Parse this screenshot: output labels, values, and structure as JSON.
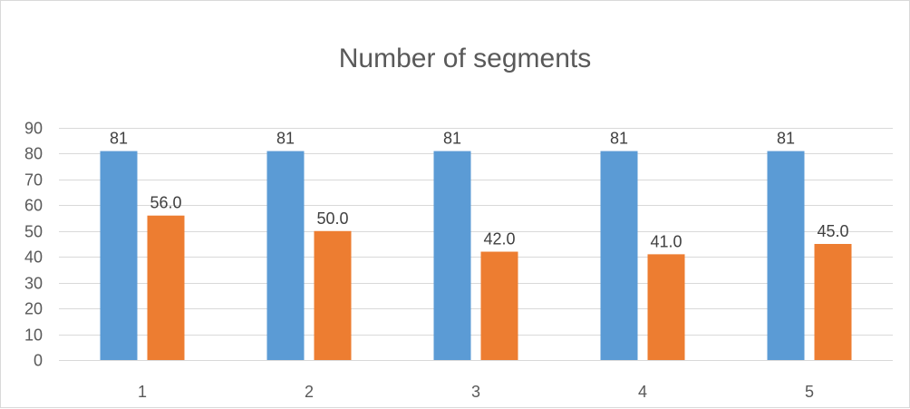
{
  "chart_data": {
    "type": "bar",
    "title": "Number of segments",
    "categories": [
      "1",
      "2",
      "3",
      "4",
      "5"
    ],
    "series": [
      {
        "color": "#5b9bd5",
        "values": [
          81,
          81,
          81,
          81,
          81
        ],
        "labels": [
          "81",
          "81",
          "81",
          "81",
          "81"
        ]
      },
      {
        "color": "#ed7d31",
        "values": [
          56,
          50,
          42,
          41,
          45
        ],
        "labels": [
          "56.0",
          "50.0",
          "42.0",
          "41.0",
          "45.0"
        ]
      }
    ],
    "ylim": [
      0,
      90
    ],
    "y_ticks": [
      "0",
      "10",
      "20",
      "30",
      "40",
      "50",
      "60",
      "70",
      "80",
      "90"
    ],
    "grid": true,
    "legend": "none"
  }
}
